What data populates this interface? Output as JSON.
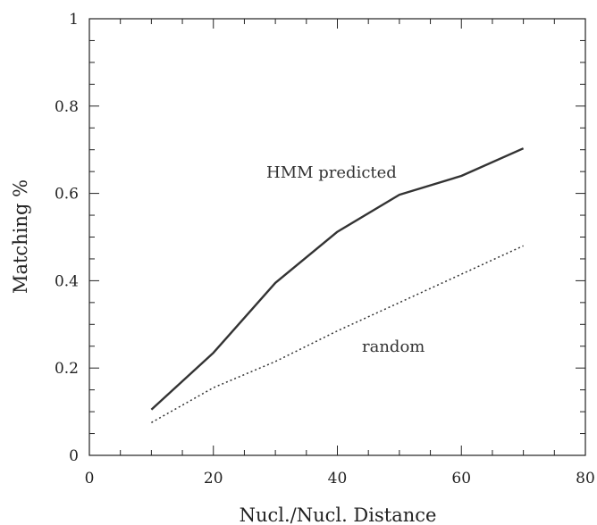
{
  "chart_data": {
    "type": "line",
    "xlabel": "Nucl./Nucl. Distance",
    "ylabel": "Matching %",
    "xlim": [
      0,
      80
    ],
    "ylim": [
      0,
      1
    ],
    "x_ticks": [
      "0",
      "20",
      "40",
      "60",
      "80"
    ],
    "y_ticks": [
      "0",
      "0.2",
      "0.4",
      "0.6",
      "0.8",
      "1"
    ],
    "grid": false,
    "annotations": [
      "HMM predicted",
      "random"
    ],
    "series": [
      {
        "style": "solid",
        "x": [
          10,
          20,
          30,
          40,
          50,
          60,
          70
        ],
        "y": [
          0.105,
          0.235,
          0.395,
          0.512,
          0.597,
          0.64,
          0.703
        ]
      },
      {
        "style": "dotted",
        "x": [
          10,
          20,
          30,
          40,
          50,
          60,
          70
        ],
        "y": [
          0.075,
          0.155,
          0.215,
          0.285,
          0.35,
          0.415,
          0.48
        ]
      }
    ]
  }
}
